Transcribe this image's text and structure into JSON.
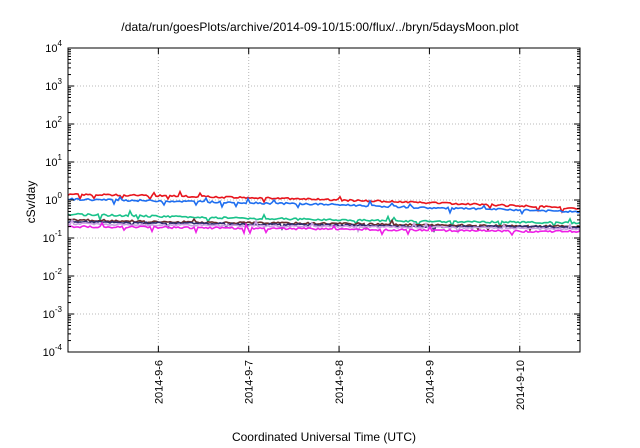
{
  "chart_data": {
    "type": "line",
    "title": "/data/run/goesPlots/archive/2014-09-10/15:00/flux/../bryn/5daysMoon.plot",
    "xlabel": "Coordinated Universal Time (UTC)",
    "ylabel": "cSv/day",
    "yscale": "log",
    "ylim": [
      0.0001,
      10000
    ],
    "y_ticks": [
      {
        "value": 0.0001,
        "base": "10",
        "exp": "-4"
      },
      {
        "value": 0.001,
        "base": "10",
        "exp": "-3"
      },
      {
        "value": 0.01,
        "base": "10",
        "exp": "-2"
      },
      {
        "value": 0.1,
        "base": "10",
        "exp": "-1"
      },
      {
        "value": 1,
        "base": "10",
        "exp": "0"
      },
      {
        "value": 10,
        "base": "10",
        "exp": "1"
      },
      {
        "value": 100,
        "base": "10",
        "exp": "2"
      },
      {
        "value": 1000,
        "base": "10",
        "exp": "3"
      },
      {
        "value": 10000,
        "base": "10",
        "exp": "4"
      }
    ],
    "xlim": [
      "2014-09-05T00:00",
      "2014-09-10T16:00"
    ],
    "x_ticks": [
      {
        "value": "2014-09-06T00:00",
        "label": "2014-9-6"
      },
      {
        "value": "2014-09-07T00:00",
        "label": "2014-9-7"
      },
      {
        "value": "2014-09-08T00:00",
        "label": "2014-9-8"
      },
      {
        "value": "2014-09-09T00:00",
        "label": "2014-9-9"
      },
      {
        "value": "2014-09-10T00:00",
        "label": "2014-9-10"
      }
    ],
    "grid": true,
    "legend": "none",
    "series": [
      {
        "color": "#e8141c",
        "x": [
          "2014-09-05T00:00",
          "2014-09-06T00:00",
          "2014-09-07T00:00",
          "2014-09-08T00:00",
          "2014-09-09T00:00",
          "2014-09-10T00:00",
          "2014-09-10T16:00"
        ],
        "y": [
          1.4,
          1.3,
          1.15,
          1.0,
          0.85,
          0.7,
          0.6
        ]
      },
      {
        "color": "#1e6ef0",
        "x": [
          "2014-09-05T00:00",
          "2014-09-06T00:00",
          "2014-09-07T00:00",
          "2014-09-08T00:00",
          "2014-09-09T00:00",
          "2014-09-10T00:00",
          "2014-09-10T16:00"
        ],
        "y": [
          1.05,
          0.95,
          0.85,
          0.75,
          0.62,
          0.55,
          0.48
        ]
      },
      {
        "color": "#19c28a",
        "x": [
          "2014-09-05T00:00",
          "2014-09-06T00:00",
          "2014-09-07T00:00",
          "2014-09-08T00:00",
          "2014-09-09T00:00",
          "2014-09-10T00:00",
          "2014-09-10T16:00"
        ],
        "y": [
          0.42,
          0.37,
          0.33,
          0.3,
          0.27,
          0.26,
          0.25
        ]
      },
      {
        "color": "#6b2c2c",
        "x": [
          "2014-09-05T00:00",
          "2014-09-06T00:00",
          "2014-09-07T00:00",
          "2014-09-08T00:00",
          "2014-09-09T00:00",
          "2014-09-10T00:00",
          "2014-09-10T16:00"
        ],
        "y": [
          0.3,
          0.27,
          0.25,
          0.24,
          0.22,
          0.21,
          0.2
        ]
      },
      {
        "color": "#2c2c6e",
        "x": [
          "2014-09-05T00:00",
          "2014-09-06T00:00",
          "2014-09-07T00:00",
          "2014-09-08T00:00",
          "2014-09-09T00:00",
          "2014-09-10T00:00",
          "2014-09-10T16:00"
        ],
        "y": [
          0.27,
          0.25,
          0.23,
          0.22,
          0.2,
          0.2,
          0.19
        ]
      },
      {
        "color": "#c8a0e0",
        "x": [
          "2014-09-05T00:00",
          "2014-09-06T00:00",
          "2014-09-07T00:00",
          "2014-09-08T00:00",
          "2014-09-09T00:00",
          "2014-09-10T00:00",
          "2014-09-10T16:00"
        ],
        "y": [
          0.24,
          0.22,
          0.21,
          0.2,
          0.19,
          0.18,
          0.17
        ]
      },
      {
        "color": "#ee20e6",
        "x": [
          "2014-09-05T00:00",
          "2014-09-06T00:00",
          "2014-09-07T00:00",
          "2014-09-08T00:00",
          "2014-09-09T00:00",
          "2014-09-10T00:00",
          "2014-09-10T16:00"
        ],
        "y": [
          0.2,
          0.19,
          0.18,
          0.17,
          0.16,
          0.15,
          0.15
        ]
      }
    ]
  }
}
